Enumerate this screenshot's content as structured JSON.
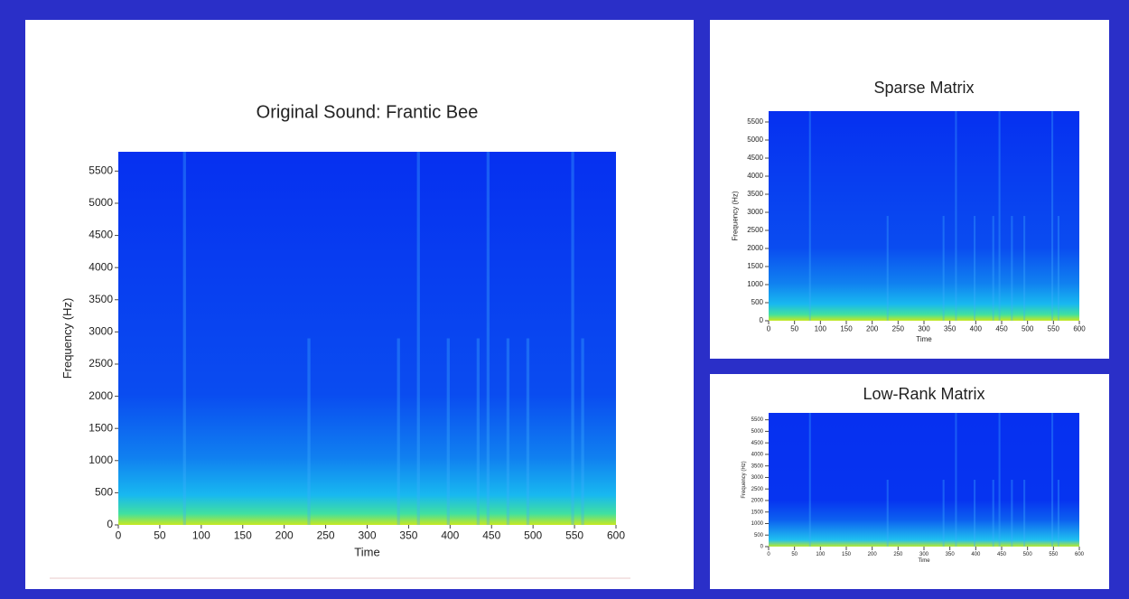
{
  "chart_data": [
    {
      "type": "spectrogram",
      "title": "Original Sound: Frantic Bee",
      "x_label": "Time",
      "y_label": "Frequency (Hz)",
      "xlim": [
        0,
        600
      ],
      "ylim": [
        0,
        5800
      ],
      "xticks": [
        0,
        50,
        100,
        150,
        200,
        250,
        300,
        350,
        400,
        450,
        500,
        550,
        600
      ],
      "yticks": [
        0,
        500,
        1000,
        1500,
        2000,
        2500,
        3000,
        3500,
        4000,
        4500,
        5000,
        5500
      ]
    },
    {
      "type": "spectrogram",
      "title": "Sparse Matrix",
      "x_label": "Time",
      "y_label": "Frequency (Hz)",
      "xlim": [
        0,
        600
      ],
      "ylim": [
        0,
        5800
      ],
      "xticks": [
        0,
        50,
        100,
        150,
        200,
        250,
        300,
        350,
        400,
        450,
        500,
        550,
        600
      ],
      "yticks": [
        0,
        500,
        1000,
        1500,
        2000,
        2500,
        3000,
        3500,
        4000,
        4500,
        5000,
        5500
      ]
    },
    {
      "type": "spectrogram",
      "title": "Low-Rank Matrix",
      "x_label": "Time",
      "y_label": "Frequency (Hz)",
      "xlim": [
        0,
        600
      ],
      "ylim": [
        0,
        5800
      ],
      "xticks": [
        0,
        50,
        100,
        150,
        200,
        250,
        300,
        350,
        400,
        450,
        500,
        550,
        600
      ],
      "yticks": [
        0,
        500,
        1000,
        1500,
        2000,
        2500,
        3000,
        3500,
        4000,
        4500,
        5000,
        5500
      ]
    }
  ]
}
